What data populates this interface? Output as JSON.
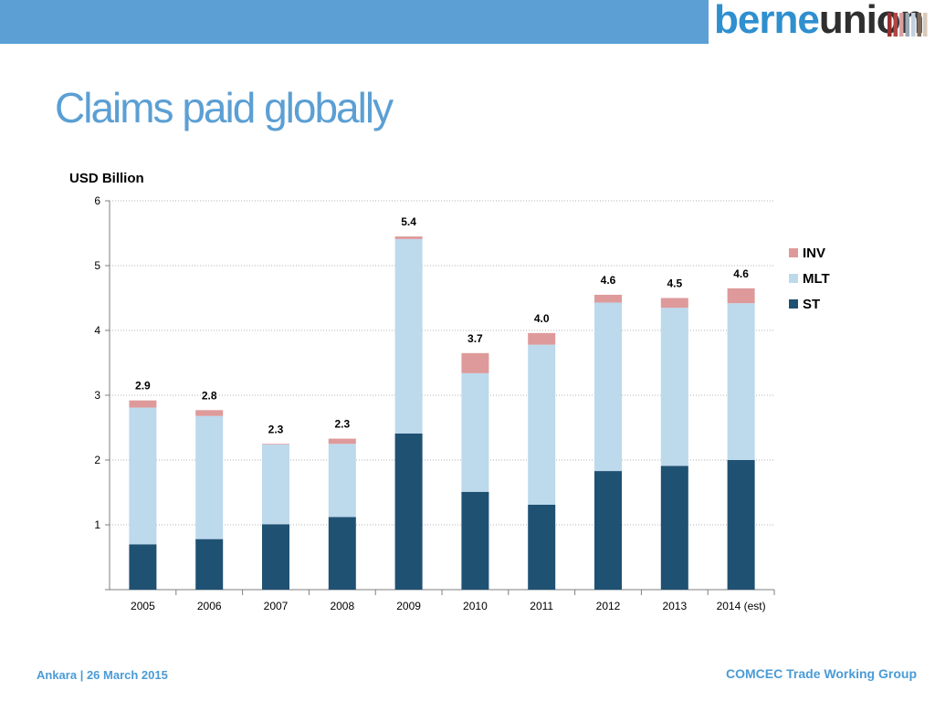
{
  "header": {
    "logo_part1": "berne",
    "logo_part2": "union",
    "logo_stripe_colors": [
      "#9a2f2f",
      "#b24545",
      "#d9a0a0",
      "#9aa7b4",
      "#c3d0de",
      "#7d6b5d",
      "#d9c9b7"
    ]
  },
  "slide": {
    "title": "Claims paid globally"
  },
  "footer": {
    "left": "Ankara | 26 March 2015",
    "right": "COMCEC Trade Working Group"
  },
  "chart_data": {
    "type": "bar",
    "stacked": true,
    "ylabel": "USD Billion",
    "ylim": [
      0,
      6
    ],
    "yticks": [
      1,
      2,
      3,
      4,
      5,
      6
    ],
    "grid": true,
    "legend_position": "right",
    "categories": [
      "2005",
      "2006",
      "2007",
      "2008",
      "2009",
      "2010",
      "2011",
      "2012",
      "2013",
      "2014 (est)"
    ],
    "series": [
      {
        "name": "ST",
        "color": "#1f5173",
        "values": [
          0.7,
          0.78,
          1.01,
          1.12,
          2.41,
          1.51,
          1.31,
          1.83,
          1.91,
          2.0
        ]
      },
      {
        "name": "MLT",
        "color": "#bdd9ec",
        "values": [
          2.11,
          1.9,
          1.23,
          1.13,
          3.0,
          1.83,
          2.47,
          2.6,
          2.44,
          2.42
        ]
      },
      {
        "name": "INV",
        "color": "#de9a9a",
        "values": [
          0.11,
          0.09,
          0.01,
          0.08,
          0.04,
          0.31,
          0.18,
          0.12,
          0.15,
          0.23
        ]
      }
    ],
    "totals_labels": [
      "2.9",
      "2.8",
      "2.3",
      "2.3",
      "5.4",
      "3.7",
      "4.0",
      "4.6",
      "4.5",
      "4.6"
    ],
    "legend_order": [
      "INV",
      "MLT",
      "ST"
    ]
  }
}
